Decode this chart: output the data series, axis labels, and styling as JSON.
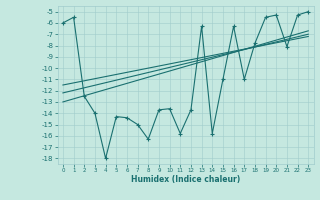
{
  "title": "",
  "xlabel": "Humidex (Indice chaleur)",
  "ylabel": "",
  "xlim": [
    -0.5,
    23.5
  ],
  "ylim": [
    -18.5,
    -4.5
  ],
  "yticks": [
    -5,
    -6,
    -7,
    -8,
    -9,
    -10,
    -11,
    -12,
    -13,
    -14,
    -15,
    -16,
    -17,
    -18
  ],
  "xticks": [
    0,
    1,
    2,
    3,
    4,
    5,
    6,
    7,
    8,
    9,
    10,
    11,
    12,
    13,
    14,
    15,
    16,
    17,
    18,
    19,
    20,
    21,
    22,
    23
  ],
  "bg_color": "#c5e8e0",
  "grid_color": "#a0cccc",
  "line_color": "#1a7070",
  "main_x": [
    0,
    1,
    2,
    3,
    4,
    5,
    6,
    7,
    8,
    9,
    10,
    11,
    12,
    13,
    14,
    15,
    16,
    17,
    18,
    19,
    20,
    21,
    22,
    23
  ],
  "main_y": [
    -6.0,
    -5.5,
    -12.5,
    -14.0,
    -18.0,
    -14.3,
    -14.4,
    -15.0,
    -16.3,
    -13.7,
    -13.6,
    -15.8,
    -13.7,
    -6.3,
    -15.8,
    -11.0,
    -6.3,
    -11.0,
    -7.8,
    -5.5,
    -5.3,
    -8.1,
    -5.3,
    -5.0
  ],
  "line1_x": [
    0,
    23
  ],
  "line1_y": [
    -11.5,
    -7.2
  ],
  "line2_x": [
    0,
    23
  ],
  "line2_y": [
    -12.2,
    -7.0
  ],
  "line3_x": [
    0,
    23
  ],
  "line3_y": [
    -13.0,
    -6.7
  ]
}
